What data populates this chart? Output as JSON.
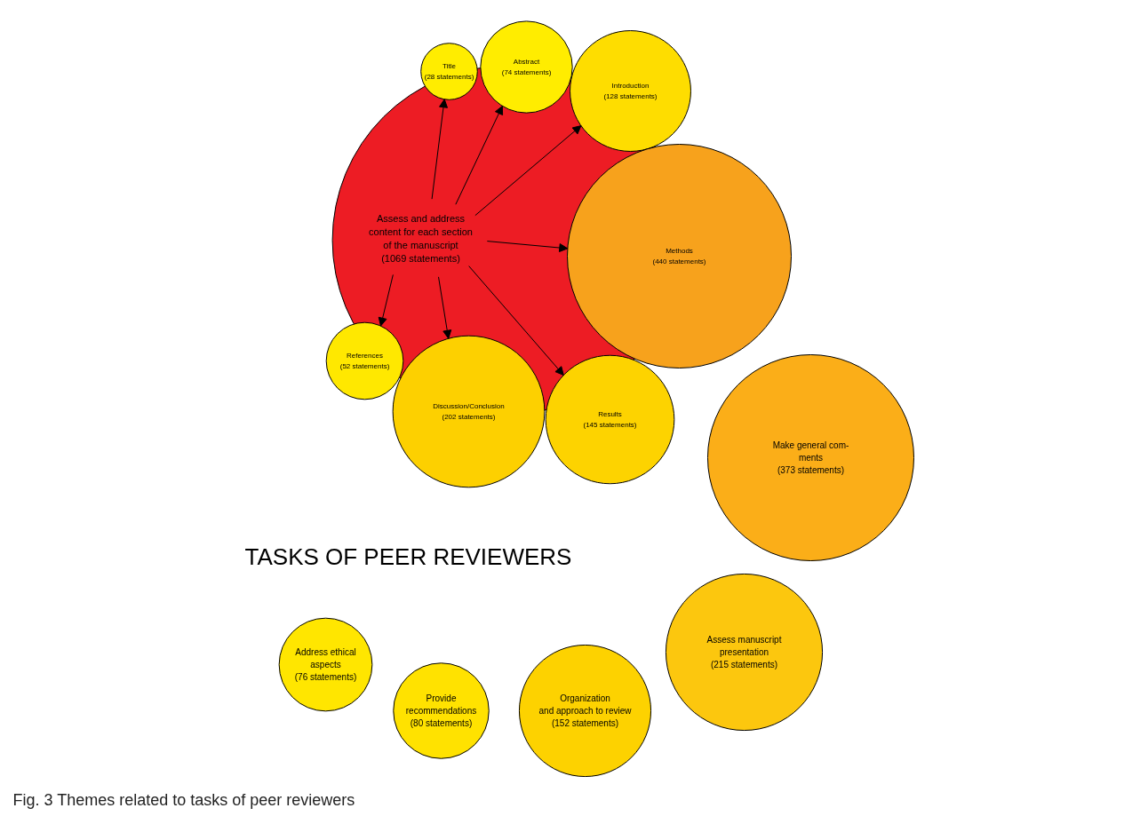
{
  "chart_data": {
    "type": "other",
    "title": "TASKS OF PEER REVIEWERS",
    "categories": [
      "Assess and address\ncontent for each section\nof the manuscript",
      "Title",
      "Abstract",
      "Introduction",
      "Methods",
      "References",
      "Discussion/Conclusion",
      "Results",
      "Make general com-\nments",
      "Address ethical\naspects",
      "Provide\nrecommendations",
      "Organization\nand approach to review",
      "Assess manuscript\npresentation"
    ],
    "values": [
      1069,
      28,
      74,
      128,
      440,
      52,
      202,
      145,
      373,
      76,
      80,
      152,
      215
    ],
    "value_labels": [
      "(1069 statements)",
      "(28 statements)",
      "(74 statements)",
      "(128 statements)",
      "(440 statements)",
      "(52 statements)",
      "(202 statements)",
      "(145 statements)",
      "(373 statements)",
      "(76 statements)",
      "(80 statements)",
      "(152 statements)",
      "(215 statements)"
    ],
    "colors": [
      "#ed1c24",
      "#ffed00",
      "#ffed00",
      "#fedd00",
      "#f7a21c",
      "#ffe800",
      "#fdd000",
      "#fdd300",
      "#fbae18",
      "#ffe600",
      "#ffe200",
      "#fdd200",
      "#fcc70e"
    ],
    "annotations": [
      "Fig. 3 Themes related to tasks of peer reviewers"
    ]
  }
}
